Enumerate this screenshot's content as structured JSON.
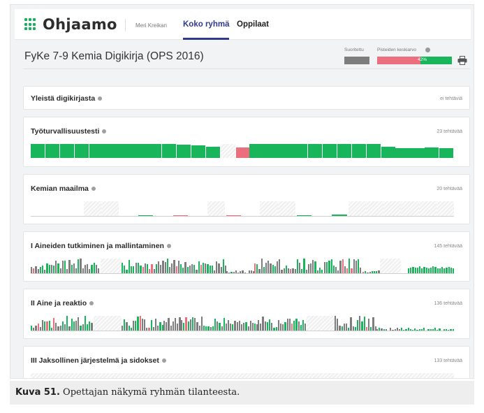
{
  "app": {
    "logo_text": "Ohjaamo",
    "user_name": "Meri Kreikan",
    "tabs": [
      {
        "label": "Koko ryhmä",
        "active": true
      },
      {
        "label": "Oppilaat",
        "active": false
      }
    ]
  },
  "course": {
    "title": "FyKe 7-9 Kemia Digikirja (OPS 2016)",
    "legend_done_label": "Suoritettu",
    "legend_avg_label": "Pisteiden keskiarvo",
    "legend_avg_value": "42%",
    "avg_fraction": 0.42
  },
  "colors": {
    "green": "#19b55b",
    "red": "#eb6f7d",
    "gray": "#7d7d7d",
    "nav_active": "#2f3a8c"
  },
  "icons": [
    "logo-grid-icon",
    "info-icon",
    "printer-icon"
  ],
  "sections": [
    {
      "title": "Yleistä digikirjasta",
      "count": "ei tehtäviä",
      "bars": []
    },
    {
      "title": "Työturvallisuustesti",
      "count": "23 tehtävää",
      "bars": [
        1,
        1,
        1,
        1,
        1,
        1,
        1,
        1,
        1,
        1,
        0.96,
        0.9,
        0.82,
        null,
        "r",
        1,
        1,
        1,
        1,
        1,
        1,
        1,
        1,
        1,
        0.8,
        0.7,
        0.7,
        0.75,
        0.68
      ]
    },
    {
      "title": "Kemian maailma",
      "count": "20 tehtävää",
      "bars": [
        "g0",
        "g0",
        "g0",
        null,
        null,
        "g0",
        "g.1",
        "g0",
        "r.1",
        "g0",
        null,
        "r.1",
        "g0",
        null,
        null,
        "g.1",
        "g0",
        "g.15",
        null,
        null,
        null,
        null,
        null,
        null
      ]
    },
    {
      "title": "I Aineiden tutkiminen ja mallintaminen",
      "count": "145 tehtävää",
      "bars": []
    },
    {
      "title": "II Aine ja reaktio",
      "count": "136 tehtävää",
      "bars": []
    },
    {
      "title": "III Jaksollinen järjestelmä ja sidokset",
      "count": "133 tehtävää",
      "bars": []
    }
  ],
  "caption": {
    "label": "Kuva 51.",
    "text": " Opettajan näkymä ryhmän tilanteesta."
  }
}
